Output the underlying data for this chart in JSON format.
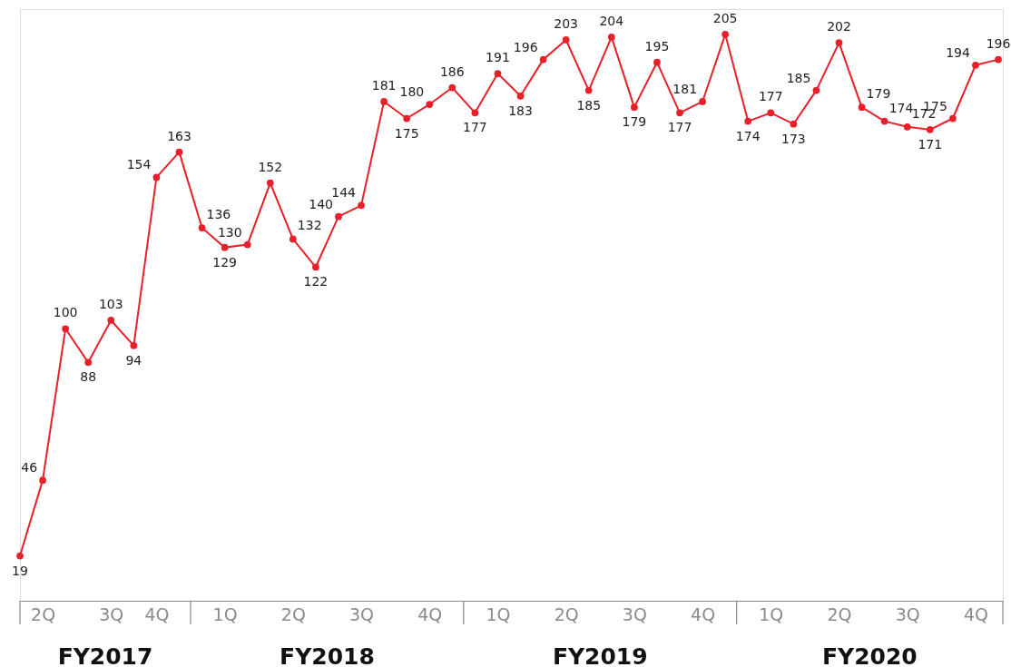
{
  "chart_data": {
    "type": "line",
    "categories": [
      null,
      "2Q",
      null,
      null,
      "3Q",
      null,
      "4Q",
      null,
      null,
      "1Q",
      null,
      null,
      "2Q",
      null,
      null,
      "3Q",
      null,
      null,
      "4Q",
      null,
      null,
      "1Q",
      null,
      null,
      "2Q",
      null,
      null,
      "3Q",
      null,
      null,
      "4Q",
      null,
      null,
      "1Q",
      null,
      null,
      "2Q",
      null,
      null,
      "3Q",
      null,
      null,
      "4Q",
      null
    ],
    "series": [
      {
        "color": "#e8202a",
        "values": [
          19,
          46,
          100,
          88,
          103,
          94,
          154,
          163,
          136,
          129,
          130,
          152,
          132,
          122,
          140,
          144,
          181,
          175,
          180,
          186,
          177,
          191,
          183,
          196,
          203,
          185,
          204,
          179,
          195,
          177,
          181,
          205,
          174,
          177,
          173,
          185,
          202,
          179,
          174,
          172,
          171,
          175,
          194,
          196
        ]
      }
    ],
    "ylim": [
      3,
      214
    ],
    "tick_labels": "x",
    "annotations": [
      "FY2017",
      "FY2018",
      "FY2019",
      "FY2020"
    ],
    "data_labels": true,
    "marker": "circle",
    "line_style": "solid"
  }
}
